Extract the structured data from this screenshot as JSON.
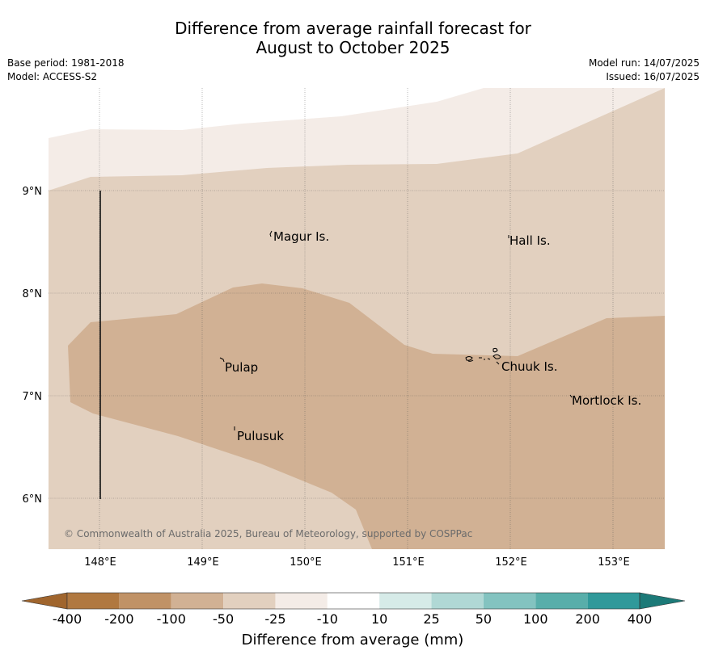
{
  "title": {
    "line1": "Difference from average rainfall forecast for",
    "line2": "August to October 2025"
  },
  "info_left": {
    "base_period": "Base period: 1981-2018",
    "model": "Model: ACCESS-S2"
  },
  "info_right": {
    "model_run": "Model run: 14/07/2025",
    "issued": "Issued: 16/07/2025"
  },
  "map": {
    "lon_ticks": [
      "148°E",
      "149°E",
      "150°E",
      "151°E",
      "152°E",
      "153°E"
    ],
    "lat_ticks": [
      "9°N",
      "8°N",
      "7°N",
      "6°N"
    ],
    "lon_range": [
      147.5,
      153.5
    ],
    "lat_range": [
      5.5,
      10.0
    ],
    "places": [
      {
        "name": "Magur Is.",
        "lon": 149.66,
        "lat": 8.57
      },
      {
        "name": "Hall Is.",
        "lon": 151.98,
        "lat": 8.53
      },
      {
        "name": "Pulap",
        "lon": 149.18,
        "lat": 7.3
      },
      {
        "name": "Chuuk Is.",
        "lon": 151.85,
        "lat": 7.31
      },
      {
        "name": "Mortlock Is.",
        "lon": 152.58,
        "lat": 6.97
      },
      {
        "name": "Pulusuk",
        "lon": 149.3,
        "lat": 6.63
      }
    ],
    "copyright": "© Commonwealth of Australia 2025, Bureau of Meteorology, supported by COSPPac"
  },
  "colorbar": {
    "label": "Difference from average (mm)",
    "ticks": [
      "-400",
      "-200",
      "-100",
      "-50",
      "-25",
      "-10",
      "10",
      "25",
      "50",
      "100",
      "200",
      "400"
    ],
    "colors": [
      "#a0652d",
      "#b07840",
      "#c09266",
      "#d1b194",
      "#e2d0bf",
      "#f4ece7",
      "#ffffff",
      "#d6ebe8",
      "#b0d8d5",
      "#83c3c0",
      "#58aeaa",
      "#30999a",
      "#1c7a78"
    ]
  }
}
